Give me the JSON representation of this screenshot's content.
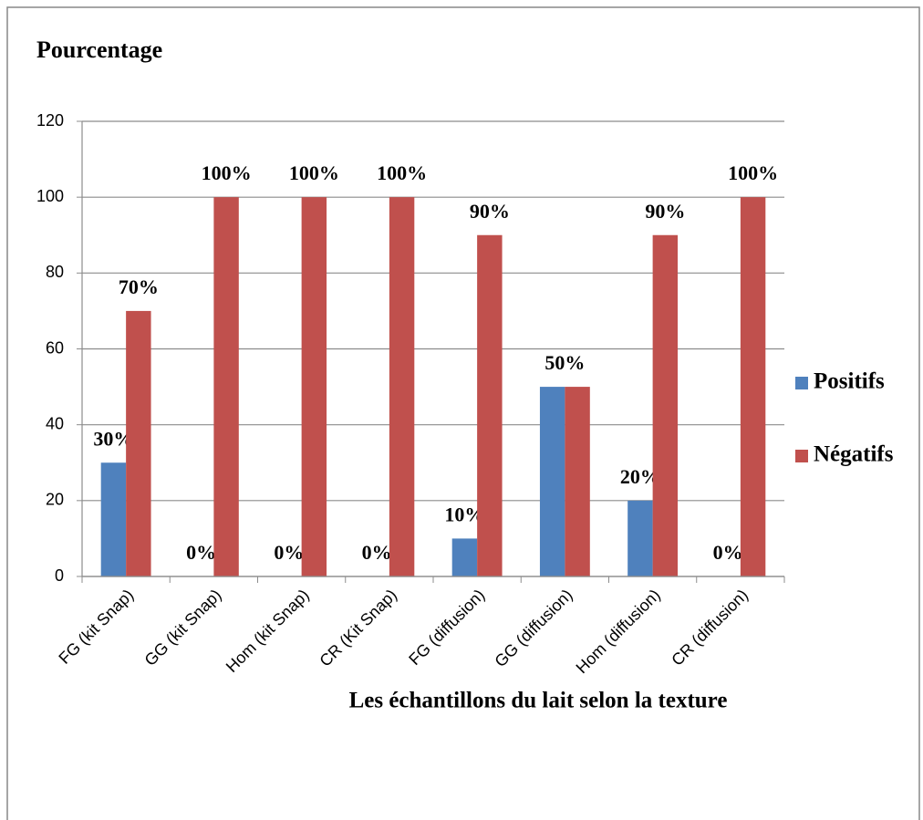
{
  "chart_data": {
    "type": "bar",
    "title": "Pourcentage",
    "x_label": "Les échantillons du lait selon la texture",
    "categories": [
      "FG (kit Snap)",
      "GG (kit Snap)",
      "Hom (kit Snap)",
      "CR (Kit Snap)",
      "FG (diffusion)",
      "GG (diffusion)",
      "Hom (diffusion)",
      "CR (diffusion)"
    ],
    "series": [
      {
        "name": "Positifs",
        "color": "#4f81bd",
        "values": [
          30,
          0,
          0,
          0,
          10,
          50,
          20,
          0
        ],
        "value_labels": [
          "30%",
          "0%",
          "0%",
          "0%",
          "10%",
          "50%",
          "20%",
          "0%"
        ]
      },
      {
        "name": "Négatifs",
        "color": "#c0504d",
        "values": [
          70,
          100,
          100,
          100,
          90,
          50,
          90,
          100
        ],
        "value_labels": [
          "70%",
          "100%",
          "100%",
          "100%",
          "90%",
          null,
          "90%",
          "100%"
        ]
      }
    ],
    "ylim": [
      0,
      120
    ],
    "yticks": [
      0,
      20,
      40,
      60,
      80,
      100,
      120
    ],
    "grid": true,
    "legend": "right"
  }
}
